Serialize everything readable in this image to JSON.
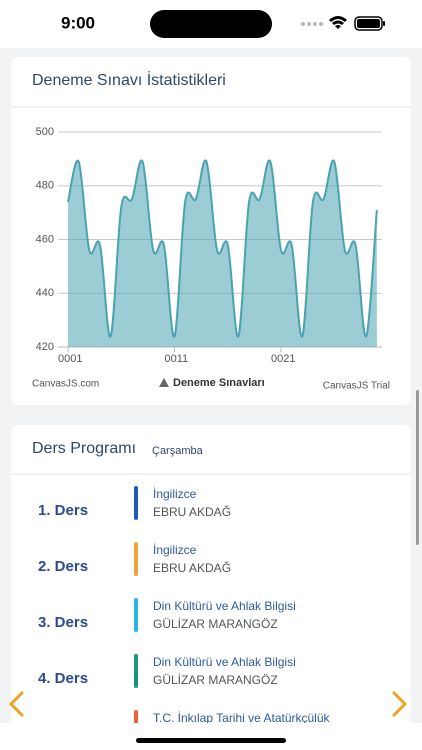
{
  "status_bar": {
    "time": "9:00"
  },
  "chart_card": {
    "title": "Deneme Sınavı İstatistikleri",
    "credit": "CanvasJS.com",
    "trial": "CanvasJS Trial",
    "chart_data": {
      "type": "splineArea",
      "categories": [
        "0001",
        null,
        null,
        null,
        null,
        null,
        null,
        null,
        null,
        null,
        "0011",
        null,
        null,
        null,
        null,
        null,
        null,
        null,
        null,
        null,
        "0021",
        null,
        null,
        null,
        null,
        null,
        null,
        null,
        null,
        null
      ],
      "series": [
        {
          "name": "Deneme Sınavları",
          "color": "#4aa3b0",
          "values": [
            474,
            489,
            456,
            458,
            424,
            472,
            475,
            489,
            456,
            458,
            424,
            474,
            475,
            489,
            456,
            458,
            424,
            474,
            475,
            489,
            456,
            458,
            424,
            474,
            475,
            489,
            456,
            458,
            424,
            471
          ]
        }
      ],
      "ylim": [
        420,
        500
      ],
      "yticks": [
        420,
        440,
        460,
        480,
        500
      ],
      "grid": true,
      "legend": "bottom"
    }
  },
  "schedule": {
    "title": "Ders Programı",
    "day": "Çarşamba",
    "lessons": [
      {
        "period": "1. Ders",
        "subject": "İngilizce",
        "teacher": "EBRU AKDAĞ",
        "color": "#1f5bbf"
      },
      {
        "period": "2. Ders",
        "subject": "İngilizce",
        "teacher": "EBRU AKDAĞ",
        "color": "#f0a33a"
      },
      {
        "period": "3. Ders",
        "subject": "Din Kültürü ve Ahlak Bilgisi",
        "teacher": "GÜLİZAR MARANGÖZ",
        "color": "#2ab3e6"
      },
      {
        "period": "4. Ders",
        "subject": "Din Kültürü ve Ahlak Bilgisi",
        "teacher": "GÜLİZAR MARANGÖZ",
        "color": "#17977a"
      },
      {
        "period": null,
        "subject": "T.C. İnkılap Tarihi ve Atatürkçülük",
        "teacher": null,
        "color": "#e8643c"
      }
    ]
  }
}
